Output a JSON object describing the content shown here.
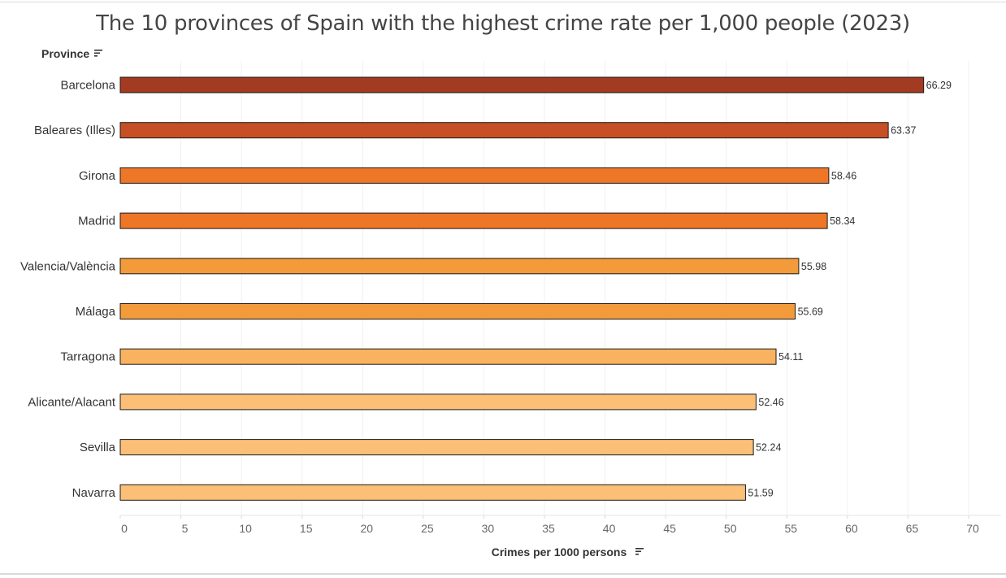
{
  "chart_data": {
    "type": "bar",
    "orientation": "horizontal",
    "title": "The 10 provinces of Spain with the highest crime rate per 1,000 people (2023)",
    "ylabel": "Province",
    "xlabel": "Crimes per 1000 persons",
    "categories": [
      "Barcelona",
      "Baleares (Illes)",
      "Girona",
      "Madrid",
      "Valencia/València",
      "Málaga",
      "Tarragona",
      "Alicante/Alacant",
      "Sevilla",
      "Navarra"
    ],
    "values": [
      66.29,
      63.37,
      58.46,
      58.34,
      55.98,
      55.69,
      54.11,
      52.46,
      52.24,
      51.59
    ],
    "data_labels": [
      "66.29",
      "63.37",
      "58.46",
      "58.34",
      "55.98",
      "55.69",
      "54.11",
      "52.46",
      "52.24",
      "51.59"
    ],
    "bar_colors": [
      "#a33a22",
      "#c64f25",
      "#ee7627",
      "#ee7627",
      "#f39a3a",
      "#f39a3a",
      "#f9b260",
      "#fbbf78",
      "#fbbf78",
      "#fbbf78"
    ],
    "xlim": [
      0,
      70
    ],
    "xticks": [
      0,
      5,
      10,
      15,
      20,
      25,
      30,
      35,
      40,
      45,
      50,
      55,
      60,
      65,
      70
    ],
    "grid": true,
    "legend": "none"
  },
  "icons": {
    "province_sort": "sort-descending-icon",
    "measure_sort": "sort-descending-icon"
  }
}
